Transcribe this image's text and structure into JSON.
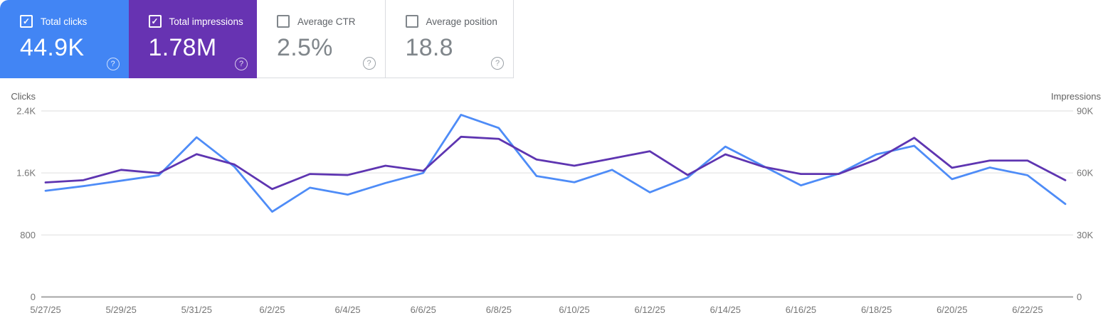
{
  "cards": [
    {
      "id": "total-clicks",
      "label": "Total clicks",
      "value": "44.9K",
      "checked": true,
      "bg": "#4285f4"
    },
    {
      "id": "total-impressions",
      "label": "Total impressions",
      "value": "1.78M",
      "checked": true,
      "bg": "#6733b2"
    },
    {
      "id": "average-ctr",
      "label": "Average CTR",
      "value": "2.5%",
      "checked": false
    },
    {
      "id": "average-position",
      "label": "Average position",
      "value": "18.8",
      "checked": false
    }
  ],
  "icons": {
    "check": "✓",
    "help": "?"
  },
  "chart_data": {
    "type": "line",
    "x": [
      "5/27/25",
      "5/28/25",
      "5/29/25",
      "5/30/25",
      "5/31/25",
      "6/1/25",
      "6/2/25",
      "6/3/25",
      "6/4/25",
      "6/5/25",
      "6/6/25",
      "6/7/25",
      "6/8/25",
      "6/9/25",
      "6/10/25",
      "6/11/25",
      "6/12/25",
      "6/13/25",
      "6/14/25",
      "6/15/25",
      "6/16/25",
      "6/17/25",
      "6/18/25",
      "6/19/25",
      "6/20/25",
      "6/21/25",
      "6/22/25",
      "6/23/25"
    ],
    "x_tick_labels": [
      "5/27/25",
      "5/29/25",
      "5/31/25",
      "6/2/25",
      "6/4/25",
      "6/6/25",
      "6/8/25",
      "6/10/25",
      "6/12/25",
      "6/14/25",
      "6/16/25",
      "6/18/25",
      "6/20/25",
      "6/22/25"
    ],
    "series": [
      {
        "name": "Clicks",
        "axis": "left",
        "color": "#4e8cf7",
        "values": [
          1370,
          1430,
          1500,
          1570,
          2060,
          1680,
          1100,
          1410,
          1320,
          1470,
          1600,
          2350,
          2180,
          1560,
          1480,
          1640,
          1350,
          1540,
          1940,
          1690,
          1440,
          1590,
          1840,
          1950,
          1520,
          1670,
          1570,
          1200
        ]
      },
      {
        "name": "Impressions",
        "axis": "right",
        "color": "#5e35b1",
        "values": [
          55400,
          56500,
          61500,
          59900,
          69100,
          64100,
          52200,
          59500,
          59000,
          63500,
          61000,
          77500,
          76500,
          66500,
          63500,
          67000,
          70500,
          59000,
          69000,
          63000,
          59500,
          59500,
          66500,
          77000,
          62500,
          66000,
          66000,
          56500
        ]
      }
    ],
    "left_axis": {
      "label": "Clicks",
      "ticks": [
        "2.4K",
        "1.6K",
        "800",
        "0"
      ],
      "max": 2400
    },
    "right_axis": {
      "label": "Impressions",
      "ticks": [
        "90K",
        "60K",
        "30K",
        "0"
      ],
      "max": 90000
    },
    "grid": true,
    "legend": "none"
  }
}
